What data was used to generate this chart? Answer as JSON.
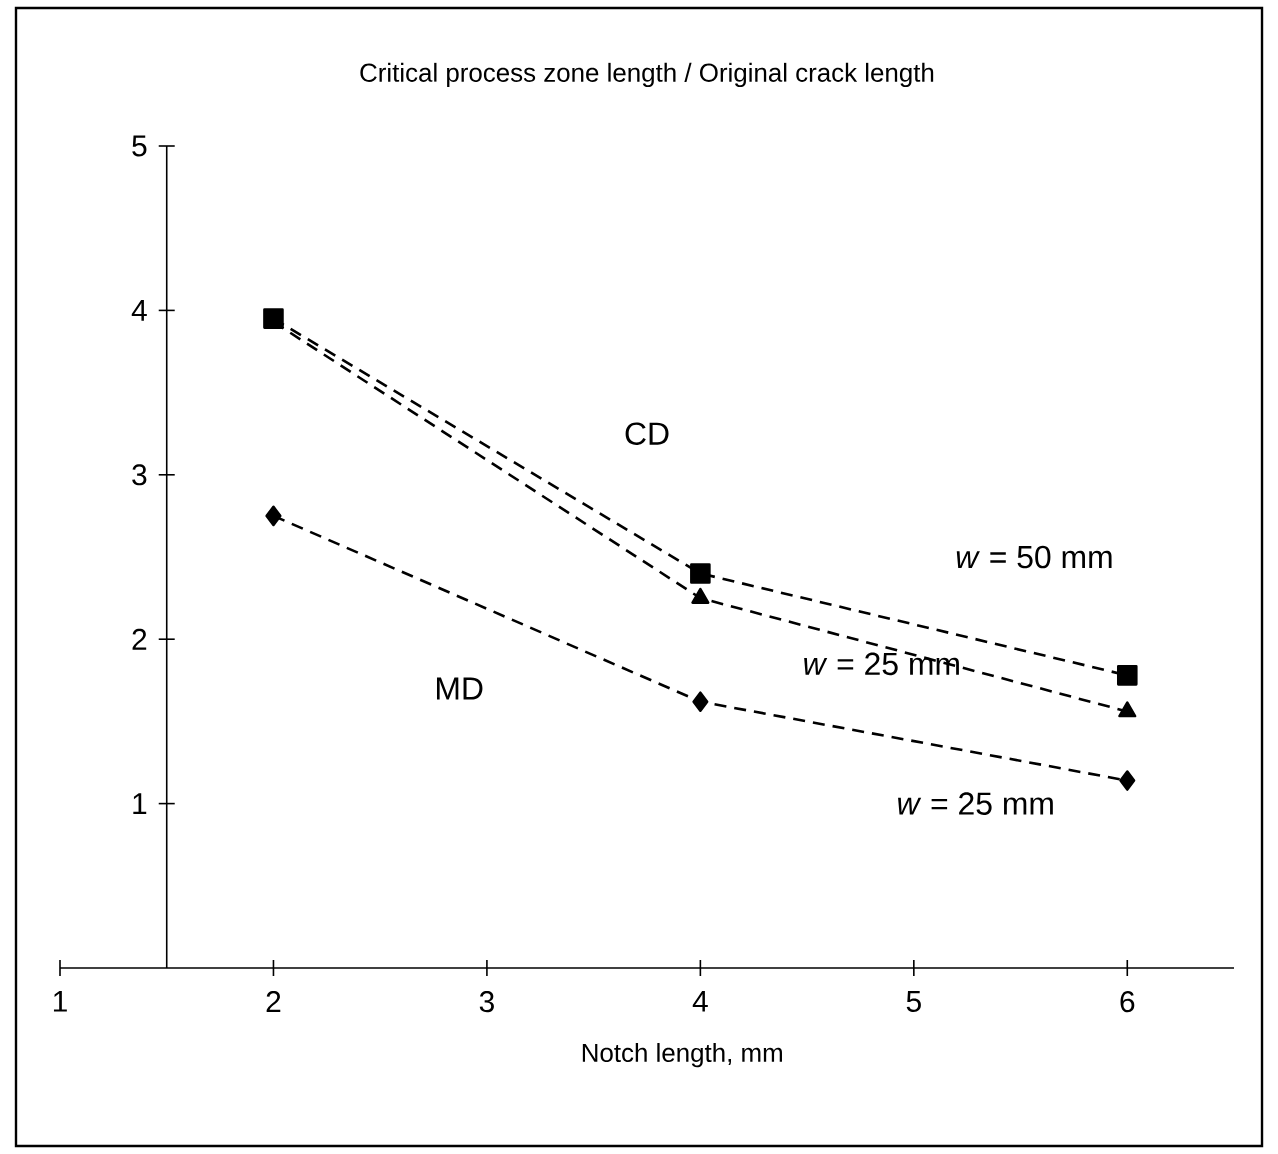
{
  "chart_data": {
    "type": "line",
    "title": "Critical process zone length / Original crack length",
    "xlabel": "Notch length, mm",
    "x": [
      2,
      4,
      6
    ],
    "series": [
      {
        "color": "#000000",
        "marker": "square",
        "values": [
          3.95,
          2.4,
          1.78
        ]
      },
      {
        "color": "#000000",
        "marker": "triangle",
        "values": [
          3.93,
          2.25,
          1.56
        ]
      },
      {
        "color": "#000000",
        "marker": "diamond",
        "values": [
          2.75,
          1.62,
          1.14
        ]
      }
    ],
    "xlim": [
      1,
      6.5
    ],
    "xticks": [
      1,
      2,
      3,
      4,
      5,
      6
    ],
    "ylim": [
      0,
      5
    ],
    "yticks": [
      1,
      2,
      3,
      4,
      5
    ],
    "line_style": "dashed",
    "grid": false,
    "annotations": [
      "CD",
      "MD",
      "*w* = 50 mm",
      "*w* = 25 mm",
      "*w* = 25 mm"
    ]
  }
}
